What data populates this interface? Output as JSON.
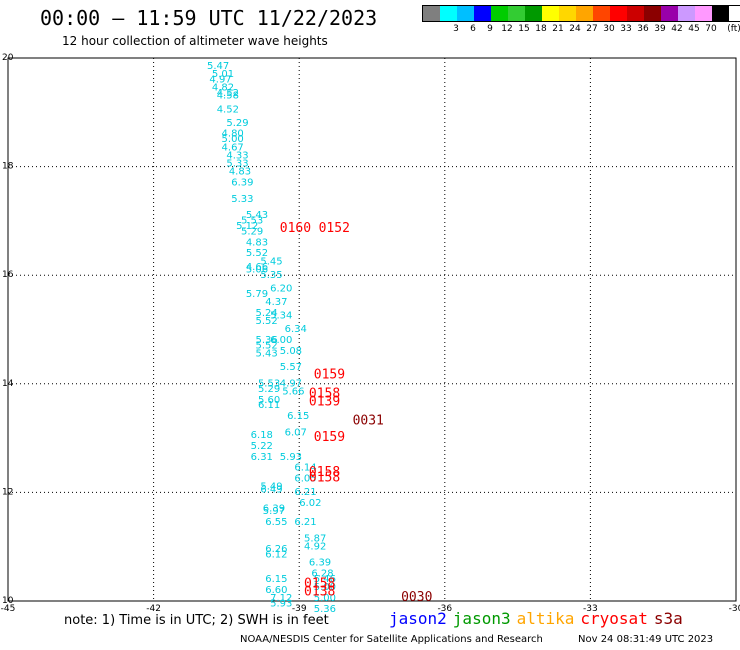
{
  "header": {
    "title": "00:00 — 11:59 UTC 11/22/2023",
    "subtitle": "12 hour collection of altimeter wave heights"
  },
  "legend": {
    "unit": "(ft)",
    "bins": [
      {
        "label": "",
        "color": "#7f7f7f"
      },
      {
        "label": "3",
        "color": "#00ffff"
      },
      {
        "label": "6",
        "color": "#00bfff"
      },
      {
        "label": "9",
        "color": "#0000ff"
      },
      {
        "label": "12",
        "color": "#00cc00"
      },
      {
        "label": "15",
        "color": "#33cc33"
      },
      {
        "label": "18",
        "color": "#009900"
      },
      {
        "label": "21",
        "color": "#ffff00"
      },
      {
        "label": "24",
        "color": "#ffd700"
      },
      {
        "label": "27",
        "color": "#ffa500"
      },
      {
        "label": "30",
        "color": "#ff4500"
      },
      {
        "label": "33",
        "color": "#ff0000"
      },
      {
        "label": "36",
        "color": "#cc0000"
      },
      {
        "label": "39",
        "color": "#8b0000"
      },
      {
        "label": "42",
        "color": "#9900aa"
      },
      {
        "label": "45",
        "color": "#cc99ff"
      },
      {
        "label": "70",
        "color": "#ff99ff"
      },
      {
        "label": "",
        "color": "#000000"
      }
    ]
  },
  "footer": {
    "note": "note: 1) Time is in UTC; 2) SWH is in feet",
    "credit": "NOAA/NESDIS Center for Satellite Applications and Research",
    "generated": "Nov 24 08:31:49 UTC 2023",
    "satellites": [
      {
        "name": "jason2",
        "color": "#0000ff"
      },
      {
        "name": "jason3",
        "color": "#009900"
      },
      {
        "name": "altika",
        "color": "#ffa500"
      },
      {
        "name": "cryosat",
        "color": "#ff0000"
      },
      {
        "name": "s3a",
        "color": "#8b0000"
      }
    ]
  },
  "chart_data": {
    "type": "scatter",
    "xlim": [
      -45,
      -30
    ],
    "ylim": [
      10,
      20
    ],
    "xticks": [
      -45,
      -42,
      -39,
      -36,
      -33,
      -30
    ],
    "yticks": [
      10,
      12,
      14,
      16,
      18,
      20
    ],
    "grid": true,
    "series": [
      {
        "name": "altimeter_swh",
        "color": "#00ccdd",
        "points": [
          {
            "x": -40.9,
            "y": 19.8,
            "label": "5.47"
          },
          {
            "x": -40.8,
            "y": 19.65,
            "label": "5.01"
          },
          {
            "x": -40.85,
            "y": 19.55,
            "label": "4.97"
          },
          {
            "x": -40.8,
            "y": 19.4,
            "label": "4.82"
          },
          {
            "x": -40.7,
            "y": 19.3,
            "label": "4.52"
          },
          {
            "x": -40.7,
            "y": 19.25,
            "label": "4.58"
          },
          {
            "x": -40.7,
            "y": 19.0,
            "label": "4.52"
          },
          {
            "x": -40.5,
            "y": 18.75,
            "label": "5.29"
          },
          {
            "x": -40.6,
            "y": 18.55,
            "label": "4.80"
          },
          {
            "x": -40.6,
            "y": 18.45,
            "label": "5.00"
          },
          {
            "x": -40.6,
            "y": 18.3,
            "label": "4.67"
          },
          {
            "x": -40.5,
            "y": 18.15,
            "label": "4.33"
          },
          {
            "x": -40.5,
            "y": 18.0,
            "label": "5.33"
          },
          {
            "x": -40.45,
            "y": 17.85,
            "label": "4.83"
          },
          {
            "x": -40.4,
            "y": 17.65,
            "label": "6.39"
          },
          {
            "x": -40.4,
            "y": 17.35,
            "label": "5.33"
          },
          {
            "x": -40.1,
            "y": 17.05,
            "label": "5.43"
          },
          {
            "x": -40.2,
            "y": 16.95,
            "label": "5.53"
          },
          {
            "x": -40.3,
            "y": 16.85,
            "label": "5.12"
          },
          {
            "x": -40.2,
            "y": 16.75,
            "label": "5.29"
          },
          {
            "x": -40.1,
            "y": 16.55,
            "label": "4.83"
          },
          {
            "x": -40.1,
            "y": 16.35,
            "label": "5.52"
          },
          {
            "x": -39.8,
            "y": 16.2,
            "label": "5.45"
          },
          {
            "x": -40.1,
            "y": 16.1,
            "label": "4.66"
          },
          {
            "x": -40.1,
            "y": 16.05,
            "label": "5.06"
          },
          {
            "x": -39.8,
            "y": 15.95,
            "label": "5.35"
          },
          {
            "x": -39.6,
            "y": 15.7,
            "label": "6.20"
          },
          {
            "x": -40.1,
            "y": 15.6,
            "label": "5.79"
          },
          {
            "x": -39.7,
            "y": 15.45,
            "label": "4.37"
          },
          {
            "x": -39.9,
            "y": 15.25,
            "label": "5.24"
          },
          {
            "x": -39.6,
            "y": 15.2,
            "label": "5.34"
          },
          {
            "x": -39.9,
            "y": 15.1,
            "label": "5.52"
          },
          {
            "x": -39.3,
            "y": 14.95,
            "label": "6.34"
          },
          {
            "x": -39.9,
            "y": 14.75,
            "label": "5.36"
          },
          {
            "x": -39.6,
            "y": 14.75,
            "label": "6.00"
          },
          {
            "x": -39.9,
            "y": 14.65,
            "label": "5.52"
          },
          {
            "x": -39.9,
            "y": 14.5,
            "label": "5.43"
          },
          {
            "x": -39.4,
            "y": 14.55,
            "label": "5.08"
          },
          {
            "x": -39.4,
            "y": 14.25,
            "label": "5.57"
          },
          {
            "x": -39.85,
            "y": 13.95,
            "label": "5.53"
          },
          {
            "x": -39.4,
            "y": 13.95,
            "label": "4.97"
          },
          {
            "x": -39.85,
            "y": 13.85,
            "label": "5.29"
          },
          {
            "x": -39.35,
            "y": 13.8,
            "label": "5.66"
          },
          {
            "x": -39.85,
            "y": 13.65,
            "label": "5.60"
          },
          {
            "x": -39.85,
            "y": 13.55,
            "label": "6.11"
          },
          {
            "x": -39.25,
            "y": 13.35,
            "label": "6.15"
          },
          {
            "x": -40.0,
            "y": 13.0,
            "label": "6.18"
          },
          {
            "x": -39.3,
            "y": 13.05,
            "label": "6.07"
          },
          {
            "x": -40.0,
            "y": 12.8,
            "label": "5.22"
          },
          {
            "x": -39.4,
            "y": 12.6,
            "label": "5.93"
          },
          {
            "x": -40.0,
            "y": 12.6,
            "label": "6.31"
          },
          {
            "x": -39.1,
            "y": 12.4,
            "label": "6.14"
          },
          {
            "x": -39.1,
            "y": 12.2,
            "label": "6.05"
          },
          {
            "x": -39.8,
            "y": 12.05,
            "label": "5.49"
          },
          {
            "x": -39.8,
            "y": 12.0,
            "label": "6.49"
          },
          {
            "x": -39.1,
            "y": 11.95,
            "label": "6.21"
          },
          {
            "x": -39.0,
            "y": 11.75,
            "label": "6.02"
          },
          {
            "x": -39.75,
            "y": 11.65,
            "label": "6.39"
          },
          {
            "x": -39.75,
            "y": 11.6,
            "label": "5.97"
          },
          {
            "x": -39.1,
            "y": 11.4,
            "label": "6.21"
          },
          {
            "x": -38.9,
            "y": 11.1,
            "label": "5.87"
          },
          {
            "x": -39.7,
            "y": 11.4,
            "label": "6.55"
          },
          {
            "x": -38.9,
            "y": 10.95,
            "label": "4.92"
          },
          {
            "x": -39.7,
            "y": 10.9,
            "label": "6.26"
          },
          {
            "x": -39.7,
            "y": 10.8,
            "label": "6.12"
          },
          {
            "x": -38.8,
            "y": 10.65,
            "label": "6.39"
          },
          {
            "x": -38.75,
            "y": 10.45,
            "label": "6.28"
          },
          {
            "x": -39.7,
            "y": 10.35,
            "label": "6.15"
          },
          {
            "x": -38.7,
            "y": 10.35,
            "label": "5.46"
          },
          {
            "x": -39.7,
            "y": 10.15,
            "label": "6.60"
          },
          {
            "x": -38.7,
            "y": 10.2,
            "label": "5.00"
          },
          {
            "x": -39.6,
            "y": 10.0,
            "label": "7.12"
          },
          {
            "x": -38.7,
            "y": 10.0,
            "label": "5.00"
          },
          {
            "x": -39.6,
            "y": 9.9,
            "label": "5.93"
          },
          {
            "x": -38.7,
            "y": 9.8,
            "label": "5.36"
          }
        ]
      },
      {
        "name": "cryosat_times",
        "color": "#ff0000",
        "points": [
          {
            "x": -39.4,
            "y": 16.8,
            "label": "0160"
          },
          {
            "x": -38.6,
            "y": 16.8,
            "label": "0152"
          },
          {
            "x": -38.7,
            "y": 14.1,
            "label": "0159"
          },
          {
            "x": -38.8,
            "y": 13.75,
            "label": "0158"
          },
          {
            "x": -38.8,
            "y": 13.6,
            "label": "0139"
          },
          {
            "x": -38.7,
            "y": 12.95,
            "label": "0159"
          },
          {
            "x": -38.8,
            "y": 12.3,
            "label": "0158"
          },
          {
            "x": -38.8,
            "y": 12.2,
            "label": "0158"
          },
          {
            "x": -38.9,
            "y": 10.25,
            "label": "0158"
          },
          {
            "x": -38.9,
            "y": 10.1,
            "label": "0138"
          }
        ]
      },
      {
        "name": "s3a_times",
        "color": "#8b0000",
        "points": [
          {
            "x": -37.9,
            "y": 13.25,
            "label": "0031"
          },
          {
            "x": -36.9,
            "y": 10.0,
            "label": "0030"
          }
        ]
      }
    ]
  }
}
